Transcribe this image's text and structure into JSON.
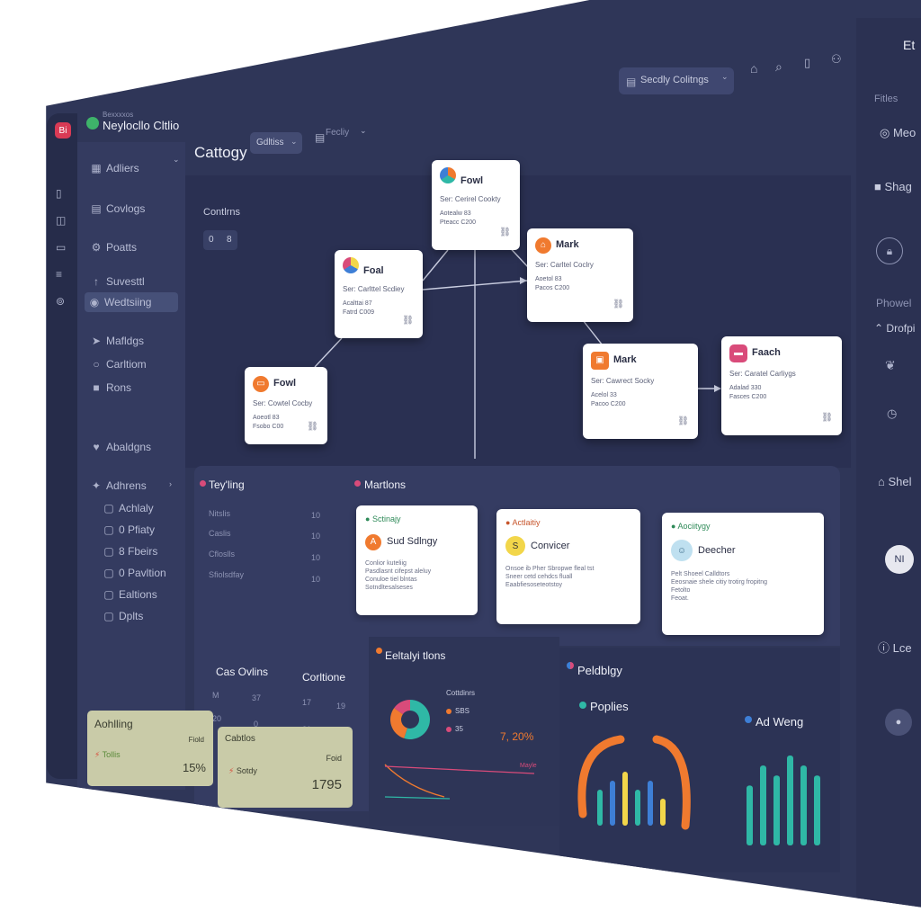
{
  "app": {
    "logo_letters": "Bi",
    "subtitle": "Bexxxxos",
    "name": "Neylocllo Cltlio"
  },
  "header": {
    "page_title": "Cattogy",
    "chip_label": "Gdltiss",
    "menu_label": "Fecliy",
    "top_button": "Secdly Colitngs",
    "right_label": "Et"
  },
  "sidebar": {
    "items": [
      {
        "label": "Adliers",
        "icon": "grid-icon"
      },
      {
        "label": "Covlogs",
        "icon": "doc-icon"
      },
      {
        "label": "Poatts",
        "icon": "gear-icon"
      },
      {
        "label": "Suvesttl",
        "icon": "up-arrow-icon"
      },
      {
        "label": "Wedtsiing",
        "icon": "user-icon"
      },
      {
        "label": "Mafldgs",
        "icon": "cursor-icon"
      },
      {
        "label": "Carltiom",
        "icon": "circle-icon"
      },
      {
        "label": "Rons",
        "icon": "box-icon"
      }
    ],
    "section2_label": "Abaldgns",
    "group_label": "Adhrens",
    "subitems": [
      "Achlaly",
      "0 Pfiaty",
      "8 Fbeirs",
      "0 Pavltion",
      "Ealtions",
      "Dplts"
    ]
  },
  "graph": {
    "section_label": "Contlrns",
    "mini_controls": [
      "0",
      "8"
    ],
    "nodes": [
      {
        "title": "Fowl",
        "sub": "Ser: Cerirel Cookty",
        "val1": "Aotealw 83",
        "val2": "Pteacc C200"
      },
      {
        "title": "Foal",
        "sub": "Ser: Carlttel Scdiey",
        "val1": "Acalttai 87",
        "val2": "Fatrd C009"
      },
      {
        "title": "Mark",
        "sub": "Ser: Carltel Coclry",
        "val1": "Aoetol 83",
        "val2": "Pacos C200"
      },
      {
        "title": "Fowl",
        "sub": "Ser: Cowtel Cocby",
        "val1": "Aoeotl 83",
        "val2": "Fsobo C00"
      },
      {
        "title": "Mark",
        "sub": "Ser: Cawrect Socky",
        "val1": "Acelol 33",
        "val2": "Pacoo C200"
      },
      {
        "title": "Faach",
        "sub": "Ser: Caratel Carliygs",
        "val1": "Adalad 330",
        "val2": "Fasces C200"
      }
    ]
  },
  "tasks": {
    "title": "Tey'ling",
    "rows": [
      {
        "label": "Nitslis",
        "value": "10"
      },
      {
        "label": "Caslis",
        "value": "10"
      },
      {
        "label": "Cfloslls",
        "value": "10"
      },
      {
        "label": "Sfiolsdfay",
        "value": "10"
      }
    ]
  },
  "mentions": {
    "title": "Martlons",
    "cards": [
      {
        "tag": "Sctinajy",
        "title": "Sud Sdlngy",
        "body": [
          "Conlior kuteliig",
          "Pasdlasnt cifepst aleluy",
          "Conuloe tiel blntas",
          "Sotndltesalseses"
        ]
      },
      {
        "tag": "Actlaitiy",
        "title": "Convicer",
        "body": [
          "Onsoe ib Pher Sbropwe fleal tst",
          "Sneer cetd cehdcs fluall",
          "Eaabfiesoseteotstoy"
        ]
      },
      {
        "tag": "Aociitygy",
        "title": "Deecher",
        "body": [
          "Pelt Shoeel Calldtors",
          "Eeosnaie shele citiy trotirg fropitng",
          "Fetolto",
          "Feoat."
        ]
      }
    ]
  },
  "stats_panel": {
    "title": "Cas Ovlins",
    "col2_title": "Corltione",
    "rows": [
      [
        "M",
        "37",
        "17",
        "19"
      ],
      [
        "20",
        "0",
        "21",
        "20"
      ]
    ]
  },
  "stat_cards": [
    {
      "title": "Aohlling",
      "badge": "Fiold",
      "sub": "Tollis",
      "value": "15%"
    },
    {
      "title": "Cabtlos",
      "badge": "Foid",
      "sub": "Sotdy",
      "value": "1795"
    }
  ],
  "activity": {
    "title": "Eeltalyi tlons",
    "legend_title": "Cottdinrs",
    "legend": [
      {
        "label": "SBS",
        "color": "#f07a2f"
      },
      {
        "label": "35",
        "color": "#d94b7a"
      }
    ],
    "big_value": "7, 20%",
    "trend_label": "Mayle",
    "donut": [
      {
        "label": "SBS",
        "value": 55,
        "color": "#2fb8a6"
      },
      {
        "label": "35",
        "value": 30,
        "color": "#f07a2f"
      },
      {
        "label": "",
        "value": 15,
        "color": "#d94b7a"
      }
    ]
  },
  "popularity": {
    "title": "Peldblgy",
    "legend1": "Poplies",
    "legend2": "Ad Weng",
    "bars1_values": [
      4,
      5,
      6,
      4,
      5,
      3
    ],
    "bars2_values": [
      6,
      8,
      7,
      9,
      8,
      7
    ]
  },
  "rightcol": {
    "labels": [
      "Fitles",
      "Meo",
      "Shag",
      "Phowel",
      "Drofpi",
      "Shel",
      "Lce"
    ]
  },
  "colors": {
    "bg": "#2f3658",
    "accent_orange": "#f07a2f",
    "accent_teal": "#2fb8a6",
    "accent_pink": "#d94b7a",
    "accent_green": "#2e8a58",
    "accent_yellow": "#f2d64a",
    "accent_blue": "#3e7fd6"
  }
}
